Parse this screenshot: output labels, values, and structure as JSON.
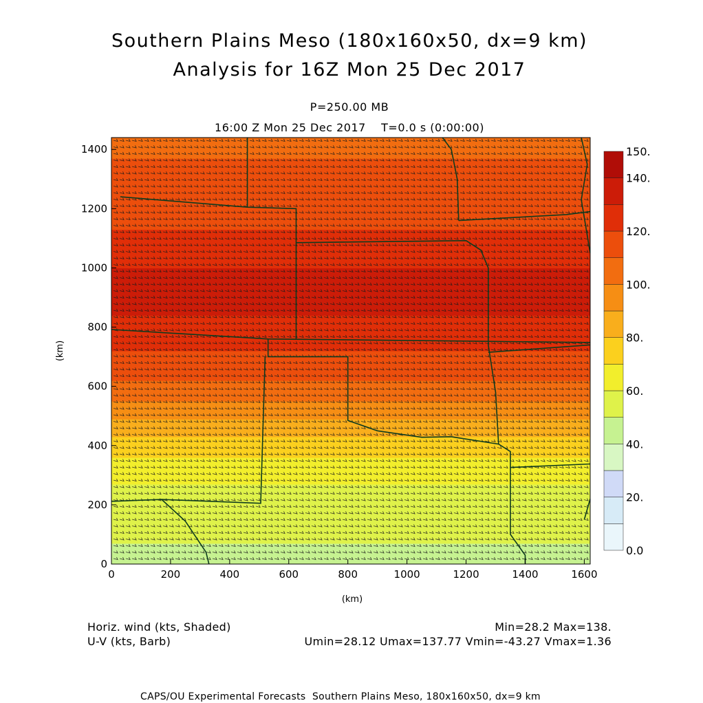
{
  "header": {
    "title_line1": "Southern Plains Meso (180x160x50, dx=9 km)",
    "title_line2": "Analysis for 16Z Mon 25 Dec 2017",
    "level": "P=250.00 MB",
    "time_line": "16:00 Z Mon 25 Dec 2017    T=0.0 s (0:00:00)"
  },
  "footer": {
    "field1": "Horiz. wind (kts, Shaded)",
    "field2": "U-V (kts, Barb)",
    "minmax": "Min=28.2 Max=138.",
    "uv_minmax": "Umin=28.12 Umax=137.77 Vmin=-43.27 Vmax=1.36",
    "credit": "CAPS/OU Experimental Forecasts  Southern Plains Meso, 180x160x50, dx=9 km"
  },
  "chart_data": {
    "type": "heatmap",
    "title": "Southern Plains Meso (180x160x50, dx=9 km)",
    "xlabel": "(km)",
    "ylabel": "(km)",
    "xlim": [
      0,
      1620
    ],
    "ylim": [
      0,
      1440
    ],
    "x_ticks": [
      0,
      200,
      400,
      600,
      800,
      1000,
      1200,
      1400,
      1600
    ],
    "y_ticks": [
      0,
      200,
      400,
      600,
      800,
      1000,
      1200,
      1400
    ],
    "x_tick_labels": [
      "0",
      "200",
      "400",
      "600",
      "800",
      "1000",
      "1200",
      "1400",
      "1600"
    ],
    "y_tick_labels": [
      "0",
      "200",
      "400",
      "600",
      "800",
      "1000",
      "1200",
      "1400"
    ],
    "field": "Horiz. wind (kts)",
    "min": 28.2,
    "max": 138,
    "colorbar": {
      "labels": [
        "0.0",
        "20.",
        "40.",
        "60.",
        "80.",
        "100.",
        "120.",
        "140.",
        "150."
      ],
      "levels": [
        0,
        10,
        20,
        30,
        40,
        50,
        60,
        70,
        80,
        90,
        100,
        110,
        120,
        130,
        140,
        150
      ],
      "colors": [
        "#eaf6fb",
        "#d7ebf7",
        "#d0daf7",
        "#d8f7c3",
        "#c6f291",
        "#dff24a",
        "#f2ee2c",
        "#fbd01e",
        "#f9ae1c",
        "#f68e14",
        "#f26d10",
        "#ec4e0c",
        "#e02e08",
        "#cc1c08",
        "#b00d07"
      ]
    },
    "speed_profile_by_y_km": [
      {
        "y": 0,
        "speed": 48
      },
      {
        "y": 150,
        "speed": 52
      },
      {
        "y": 300,
        "speed": 62
      },
      {
        "y": 400,
        "speed": 75
      },
      {
        "y": 500,
        "speed": 92
      },
      {
        "y": 600,
        "speed": 108
      },
      {
        "y": 700,
        "speed": 118
      },
      {
        "y": 800,
        "speed": 128
      },
      {
        "y": 900,
        "speed": 133
      },
      {
        "y": 1000,
        "speed": 130
      },
      {
        "y": 1100,
        "speed": 122
      },
      {
        "y": 1200,
        "speed": 115
      },
      {
        "y": 1300,
        "speed": 112
      },
      {
        "y": 1440,
        "speed": 108
      }
    ]
  }
}
